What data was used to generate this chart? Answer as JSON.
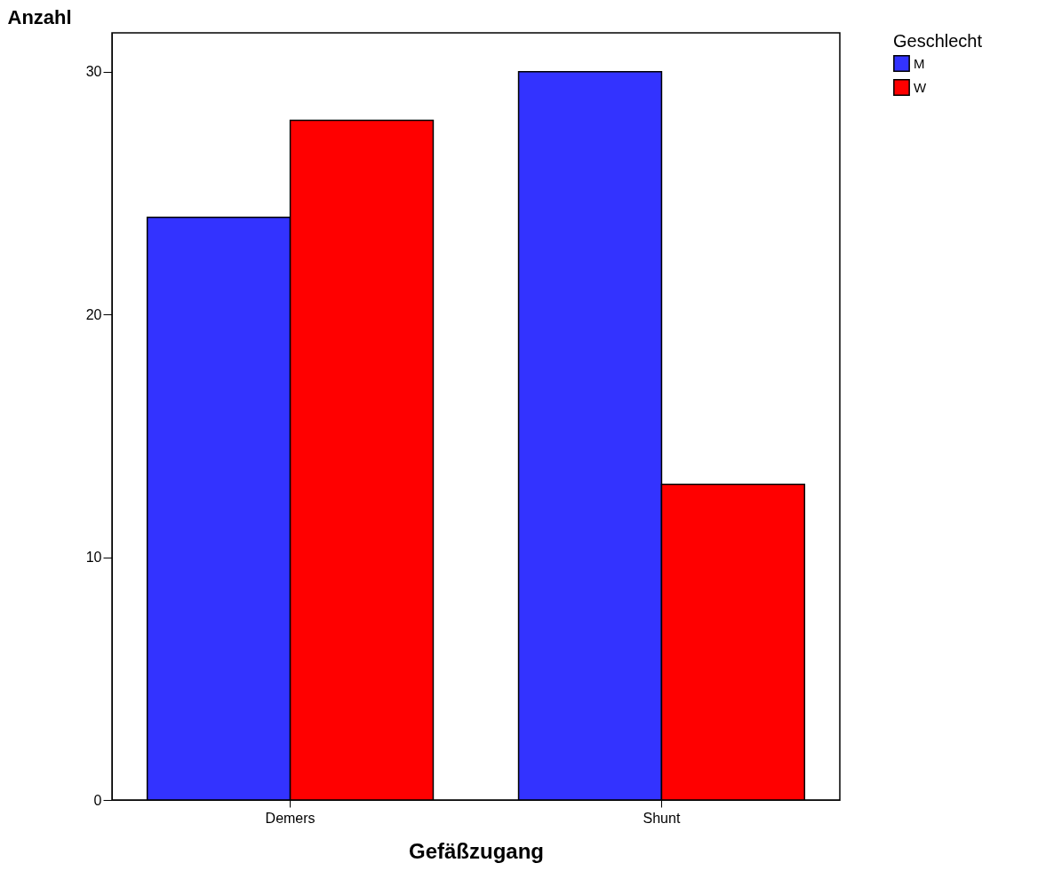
{
  "chart_data": {
    "type": "bar",
    "xlabel": "Gefäßzugang",
    "ylabel": "Anzahl",
    "legend_title": "Geschlecht",
    "legend": "top right",
    "grid": false,
    "categories": [
      "Demers",
      "Shunt"
    ],
    "series": [
      {
        "name": "M",
        "color": "#3333ff",
        "values": [
          24,
          30
        ]
      },
      {
        "name": "W",
        "color": "#ff0000",
        "values": [
          28,
          13
        ]
      }
    ],
    "ylim": [
      0,
      31.6
    ],
    "yticks": [
      0,
      10,
      20,
      30
    ]
  }
}
